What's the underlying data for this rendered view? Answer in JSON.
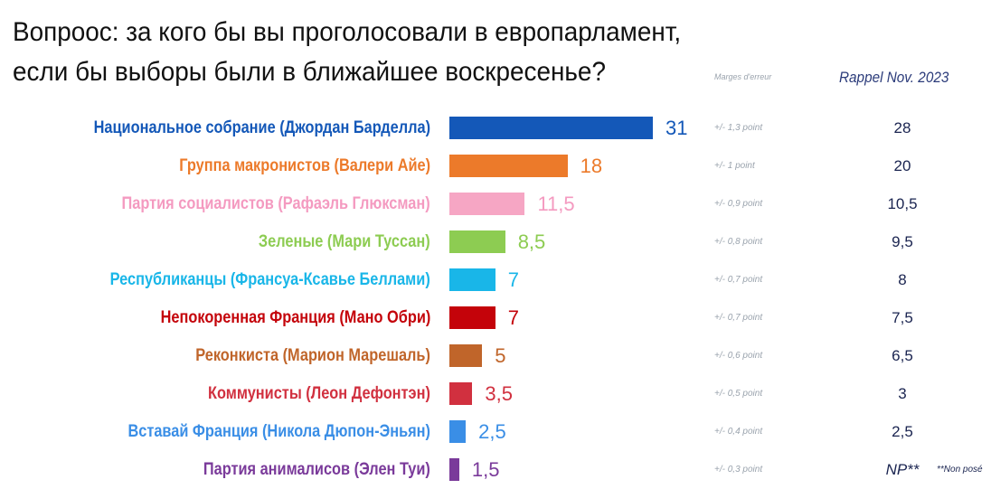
{
  "title_lines": [
    "Вопроос: за кого бы вы проголосовали в европарламент,",
    "если бы выборы были в ближайшее воскресенье?"
  ],
  "headers": {
    "margin": "Marges d'erreur",
    "rappel": "Rappel Nov. 2023"
  },
  "note": "**Non posé",
  "chart_data": {
    "type": "bar",
    "orientation": "horizontal",
    "title": "Вопроос: за кого бы вы проголосовали в европарламент, если бы выборы были в ближайшее воскресенье?",
    "categories": [
      "Национальное собрание (Джордан Барделла)",
      "Группа макронистов (Валери Айе)",
      "Партия социалистов (Рафаэль Глюксман)",
      "Зеленые (Мари Туссан)",
      "Республиканцы (Франсуа-Ксавье Беллами)",
      "Непокоренная Франция (Мано Обри)",
      "Реконкиста (Марион Марешаль)",
      "Коммунисты (Леон Дефонтэн)",
      "Вставай Франция (Никола Дюпон-Эньян)",
      "Партия анималисов (Элен Туи)"
    ],
    "values": [
      31,
      18,
      11.5,
      8.5,
      7,
      7,
      5,
      3.5,
      2.5,
      1.5
    ],
    "value_labels": [
      "31",
      "18",
      "11,5",
      "8,5",
      "7",
      "7",
      "5",
      "3,5",
      "2,5",
      "1,5"
    ],
    "colors": [
      "#1458b8",
      "#ec7a2a",
      "#f6a6c4",
      "#8dcc52",
      "#19b6e8",
      "#c4030a",
      "#c0652a",
      "#d1303f",
      "#3a8ee6",
      "#7a3a9a"
    ],
    "label_colors": [
      "#1458b8",
      "#ec7a2a",
      "#f49ac0",
      "#8dcc52",
      "#19b6e8",
      "#c4030a",
      "#c0652a",
      "#d1303f",
      "#3a8ee6",
      "#7a3a9a"
    ],
    "margins_of_error": [
      "+/- 1,3 point",
      "+/- 1 point",
      "+/- 0,9 point",
      "+/- 0,8 point",
      "+/- 0,7 point",
      "+/- 0,7 point",
      "+/- 0,6 point",
      "+/- 0,5 point",
      "+/- 0,4 point",
      "+/- 0,3 point"
    ],
    "previous": [
      "28",
      "20",
      "10,5",
      "9,5",
      "8",
      "7,5",
      "6,5",
      "3",
      "2,5",
      "NP**"
    ],
    "xlim": [
      0,
      31
    ]
  }
}
